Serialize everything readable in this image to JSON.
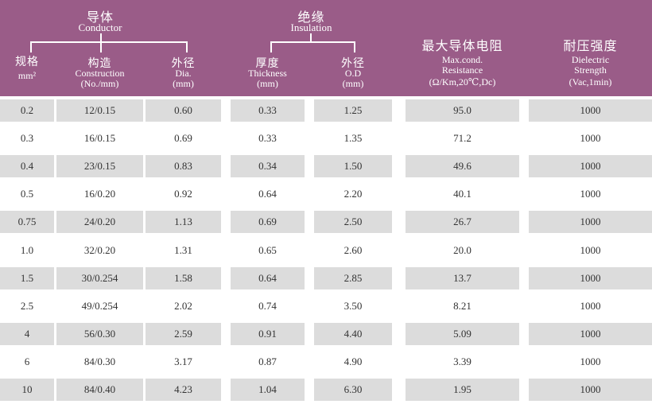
{
  "colors": {
    "header_bg": "#9a5c88",
    "header_text": "#ffffff",
    "row_alt_bg": "#dcdcdc",
    "row_bg": "#ffffff",
    "cell_text": "#333333"
  },
  "header": {
    "conductor_group": {
      "zh": "导体",
      "en": "Conductor"
    },
    "insulation_group": {
      "zh": "绝缘",
      "en": "Insulation"
    },
    "col_spec": {
      "zh": "规格",
      "unit": "mm²"
    },
    "col_construction": {
      "zh": "构造",
      "en": "Construction",
      "unit": "(No./mm)"
    },
    "col_cond_dia": {
      "zh": "外径",
      "en": "Dia.",
      "unit": "(mm)"
    },
    "col_thickness": {
      "zh": "厚度",
      "en": "Thickness",
      "unit": "(mm)"
    },
    "col_ins_od": {
      "zh": "外径",
      "en": "O.D",
      "unit": "(mm)"
    },
    "col_resistance": {
      "zh": "最大导体电阻",
      "en_line1": "Max.cond.",
      "en_line2": "Resistance",
      "unit": "(Ω/Km,20℃,Dc)"
    },
    "col_dielectric": {
      "zh": "耐压强度",
      "en_line1": "Dielectric",
      "en_line2": "Strength",
      "unit": "(Vac,1min)"
    }
  },
  "table": {
    "rows": [
      [
        "0.2",
        "12/0.15",
        "0.60",
        "0.33",
        "1.25",
        "95.0",
        "1000"
      ],
      [
        "0.3",
        "16/0.15",
        "0.69",
        "0.33",
        "1.35",
        "71.2",
        "1000"
      ],
      [
        "0.4",
        "23/0.15",
        "0.83",
        "0.34",
        "1.50",
        "49.6",
        "1000"
      ],
      [
        "0.5",
        "16/0.20",
        "0.92",
        "0.64",
        "2.20",
        "40.1",
        "1000"
      ],
      [
        "0.75",
        "24/0.20",
        "1.13",
        "0.69",
        "2.50",
        "26.7",
        "1000"
      ],
      [
        "1.0",
        "32/0.20",
        "1.31",
        "0.65",
        "2.60",
        "20.0",
        "1000"
      ],
      [
        "1.5",
        "30/0.254",
        "1.58",
        "0.64",
        "2.85",
        "13.7",
        "1000"
      ],
      [
        "2.5",
        "49/0.254",
        "2.02",
        "0.74",
        "3.50",
        "8.21",
        "1000"
      ],
      [
        "4",
        "56/0.30",
        "2.59",
        "0.91",
        "4.40",
        "5.09",
        "1000"
      ],
      [
        "6",
        "84/0.30",
        "3.17",
        "0.87",
        "4.90",
        "3.39",
        "1000"
      ],
      [
        "10",
        "84/0.40",
        "4.23",
        "1.04",
        "6.30",
        "1.95",
        "1000"
      ]
    ]
  }
}
